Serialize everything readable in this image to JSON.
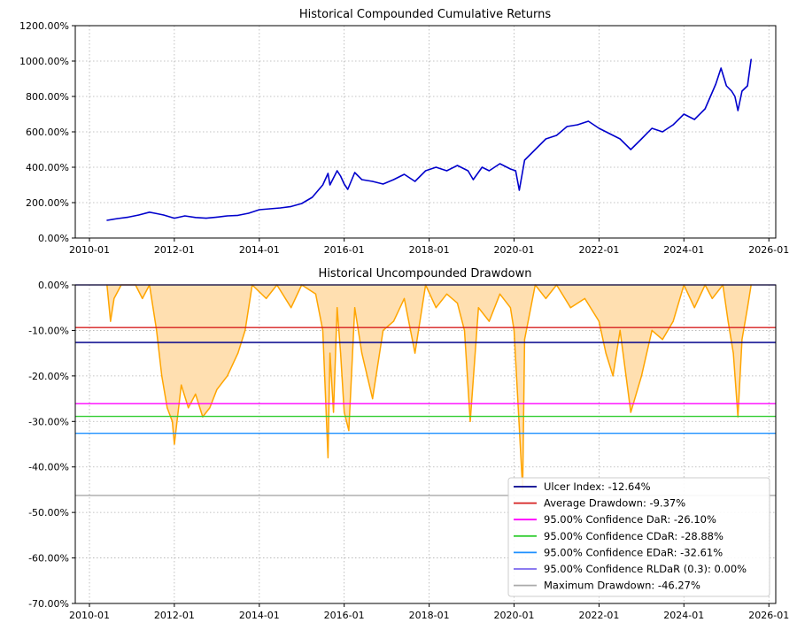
{
  "chart_data": [
    {
      "type": "line",
      "title": "Historical Compounded Cumulative Returns",
      "xlabel": "",
      "ylabel": "",
      "x_range": [
        "2009-09-01",
        "2026-03-01"
      ],
      "ylim": [
        0,
        1200
      ],
      "y_tick_values": [
        0,
        200,
        400,
        600,
        800,
        1000,
        1200
      ],
      "y_tick_labels": [
        "0.00%",
        "200.00%",
        "400.00%",
        "600.00%",
        "800.00%",
        "1000.00%",
        "1200.00%"
      ],
      "x_tick_values": [
        "2010-01-01",
        "2012-01-01",
        "2014-01-01",
        "2016-01-01",
        "2018-01-01",
        "2020-01-01",
        "2022-01-01",
        "2024-01-01",
        "2026-01-01"
      ],
      "x_tick_labels": [
        "2010-01",
        "2012-01",
        "2014-01",
        "2016-01",
        "2018-01",
        "2020-01",
        "2022-01",
        "2024-01",
        "2026-01"
      ],
      "grid": true,
      "series": [
        {
          "color": "#0000cc",
          "points": [
            [
              "2010-06-01",
              100
            ],
            [
              "2010-09-01",
              110
            ],
            [
              "2010-12-01",
              118
            ],
            [
              "2011-03-01",
              130
            ],
            [
              "2011-06-01",
              146
            ],
            [
              "2011-08-01",
              138
            ],
            [
              "2011-10-01",
              130
            ],
            [
              "2012-01-01",
              112
            ],
            [
              "2012-04-01",
              125
            ],
            [
              "2012-07-01",
              116
            ],
            [
              "2012-10-01",
              112
            ],
            [
              "2013-01-01",
              118
            ],
            [
              "2013-04-01",
              125
            ],
            [
              "2013-07-01",
              128
            ],
            [
              "2013-10-01",
              140
            ],
            [
              "2014-01-01",
              160
            ],
            [
              "2014-04-01",
              165
            ],
            [
              "2014-07-01",
              170
            ],
            [
              "2014-10-01",
              178
            ],
            [
              "2015-01-01",
              195
            ],
            [
              "2015-04-01",
              230
            ],
            [
              "2015-07-01",
              300
            ],
            [
              "2015-08-15",
              365
            ],
            [
              "2015-09-01",
              300
            ],
            [
              "2015-11-01",
              380
            ],
            [
              "2015-12-01",
              350
            ],
            [
              "2016-01-01",
              305
            ],
            [
              "2016-02-01",
              275
            ],
            [
              "2016-04-01",
              370
            ],
            [
              "2016-06-01",
              330
            ],
            [
              "2016-09-01",
              320
            ],
            [
              "2016-12-01",
              305
            ],
            [
              "2017-03-01",
              330
            ],
            [
              "2017-06-01",
              360
            ],
            [
              "2017-09-01",
              320
            ],
            [
              "2017-12-01",
              380
            ],
            [
              "2018-03-01",
              400
            ],
            [
              "2018-06-01",
              380
            ],
            [
              "2018-09-01",
              410
            ],
            [
              "2018-12-01",
              380
            ],
            [
              "2019-01-15",
              330
            ],
            [
              "2019-04-01",
              400
            ],
            [
              "2019-06-01",
              380
            ],
            [
              "2019-09-01",
              420
            ],
            [
              "2019-12-01",
              390
            ],
            [
              "2020-01-15",
              380
            ],
            [
              "2020-02-15",
              270
            ],
            [
              "2020-04-01",
              440
            ],
            [
              "2020-07-01",
              500
            ],
            [
              "2020-10-01",
              560
            ],
            [
              "2021-01-01",
              580
            ],
            [
              "2021-04-01",
              630
            ],
            [
              "2021-07-01",
              640
            ],
            [
              "2021-10-01",
              660
            ],
            [
              "2022-01-01",
              620
            ],
            [
              "2022-04-01",
              590
            ],
            [
              "2022-07-01",
              560
            ],
            [
              "2022-10-01",
              500
            ],
            [
              "2023-01-01",
              560
            ],
            [
              "2023-04-01",
              620
            ],
            [
              "2023-07-01",
              600
            ],
            [
              "2023-10-01",
              640
            ],
            [
              "2024-01-01",
              700
            ],
            [
              "2024-04-01",
              670
            ],
            [
              "2024-07-01",
              730
            ],
            [
              "2024-10-01",
              870
            ],
            [
              "2024-11-15",
              960
            ],
            [
              "2025-01-01",
              860
            ],
            [
              "2025-02-15",
              830
            ],
            [
              "2025-03-15",
              800
            ],
            [
              "2025-04-10",
              720
            ],
            [
              "2025-05-15",
              830
            ],
            [
              "2025-07-01",
              860
            ],
            [
              "2025-08-01",
              1010
            ]
          ]
        }
      ]
    },
    {
      "type": "area",
      "title": "Historical Uncompounded Drawdown",
      "xlabel": "",
      "ylabel": "",
      "x_range": [
        "2009-09-01",
        "2026-03-01"
      ],
      "ylim": [
        -70,
        0
      ],
      "y_tick_values": [
        0,
        -10,
        -20,
        -30,
        -40,
        -50,
        -60,
        -70
      ],
      "y_tick_labels": [
        "0.00%",
        "-10.00%",
        "-20.00%",
        "-30.00%",
        "-40.00%",
        "-50.00%",
        "-60.00%",
        "-70.00%"
      ],
      "x_tick_values": [
        "2010-01-01",
        "2012-01-01",
        "2014-01-01",
        "2016-01-01",
        "2018-01-01",
        "2020-01-01",
        "2022-01-01",
        "2024-01-01",
        "2026-01-01"
      ],
      "x_tick_labels": [
        "2010-01",
        "2012-01",
        "2014-01",
        "2016-01",
        "2018-01",
        "2020-01",
        "2022-01",
        "2024-01",
        "2026-01"
      ],
      "grid": true,
      "legend_position": "bottom-right",
      "drawdown": {
        "color": "#ffa500",
        "fill": "#ffdfb0",
        "points": [
          [
            "2010-06-01",
            0
          ],
          [
            "2010-07-01",
            -8
          ],
          [
            "2010-08-01",
            -3
          ],
          [
            "2010-10-01",
            0
          ],
          [
            "2011-02-01",
            0
          ],
          [
            "2011-04-01",
            -3
          ],
          [
            "2011-06-01",
            0
          ],
          [
            "2011-08-01",
            -10
          ],
          [
            "2011-09-15",
            -20
          ],
          [
            "2011-11-01",
            -27
          ],
          [
            "2011-12-15",
            -30
          ],
          [
            "2012-01-01",
            -35
          ],
          [
            "2012-03-01",
            -22
          ],
          [
            "2012-05-01",
            -27
          ],
          [
            "2012-07-01",
            -24
          ],
          [
            "2012-09-01",
            -29
          ],
          [
            "2012-11-01",
            -27
          ],
          [
            "2013-01-01",
            -23
          ],
          [
            "2013-04-01",
            -20
          ],
          [
            "2013-07-01",
            -15
          ],
          [
            "2013-09-01",
            -10
          ],
          [
            "2013-11-01",
            0
          ],
          [
            "2014-03-01",
            -3
          ],
          [
            "2014-06-01",
            0
          ],
          [
            "2014-10-01",
            -5
          ],
          [
            "2015-01-01",
            0
          ],
          [
            "2015-05-01",
            -2
          ],
          [
            "2015-07-01",
            -10
          ],
          [
            "2015-08-15",
            -38
          ],
          [
            "2015-09-01",
            -15
          ],
          [
            "2015-10-01",
            -28
          ],
          [
            "2015-11-01",
            -5
          ],
          [
            "2015-12-01",
            -15
          ],
          [
            "2016-01-01",
            -28
          ],
          [
            "2016-02-10",
            -32
          ],
          [
            "2016-04-01",
            -5
          ],
          [
            "2016-06-01",
            -15
          ],
          [
            "2016-09-01",
            -25
          ],
          [
            "2016-12-01",
            -10
          ],
          [
            "2017-03-01",
            -8
          ],
          [
            "2017-06-01",
            -3
          ],
          [
            "2017-09-01",
            -15
          ],
          [
            "2017-12-01",
            0
          ],
          [
            "2018-03-01",
            -5
          ],
          [
            "2018-06-01",
            -2
          ],
          [
            "2018-09-01",
            -4
          ],
          [
            "2018-11-01",
            -10
          ],
          [
            "2018-12-20",
            -30
          ],
          [
            "2019-03-01",
            -5
          ],
          [
            "2019-06-01",
            -8
          ],
          [
            "2019-09-01",
            -2
          ],
          [
            "2019-12-01",
            -5
          ],
          [
            "2020-01-01",
            -10
          ],
          [
            "2020-03-15",
            -45
          ],
          [
            "2020-04-01",
            -12
          ],
          [
            "2020-07-01",
            0
          ],
          [
            "2020-10-01",
            -3
          ],
          [
            "2021-01-01",
            0
          ],
          [
            "2021-05-01",
            -5
          ],
          [
            "2021-09-01",
            -3
          ],
          [
            "2022-01-01",
            -8
          ],
          [
            "2022-03-01",
            -15
          ],
          [
            "2022-05-01",
            -20
          ],
          [
            "2022-07-01",
            -10
          ],
          [
            "2022-10-01",
            -28
          ],
          [
            "2023-01-01",
            -20
          ],
          [
            "2023-04-01",
            -10
          ],
          [
            "2023-07-01",
            -12
          ],
          [
            "2023-10-01",
            -8
          ],
          [
            "2024-01-01",
            0
          ],
          [
            "2024-04-01",
            -5
          ],
          [
            "2024-07-01",
            0
          ],
          [
            "2024-09-01",
            -3
          ],
          [
            "2024-12-01",
            0
          ],
          [
            "2025-01-15",
            -8
          ],
          [
            "2025-03-01",
            -15
          ],
          [
            "2025-04-10",
            -29
          ],
          [
            "2025-05-15",
            -12
          ],
          [
            "2025-07-01",
            -5
          ],
          [
            "2025-08-01",
            0
          ]
        ]
      },
      "reference_lines": [
        {
          "label": "Ulcer Index: -12.64%",
          "value": -12.64,
          "color": "#00008b"
        },
        {
          "label": "Average Drawdown: -9.37%",
          "value": -9.37,
          "color": "#d62020"
        },
        {
          "label": "95.00% Confidence DaR: -26.10%",
          "value": -26.1,
          "color": "#ff00ff"
        },
        {
          "label": "95.00% Confidence CDaR: -28.88%",
          "value": -28.88,
          "color": "#32cd32"
        },
        {
          "label": "95.00% Confidence EDaR: -32.61%",
          "value": -32.61,
          "color": "#1e90ff"
        },
        {
          "label": "95.00% Confidence RLDaR (0.3): 0.00%",
          "value": 0.0,
          "color": "#7b68ee"
        },
        {
          "label": "Maximum Drawdown: -46.27%",
          "value": -46.27,
          "color": "#a9a9a9"
        }
      ]
    }
  ]
}
